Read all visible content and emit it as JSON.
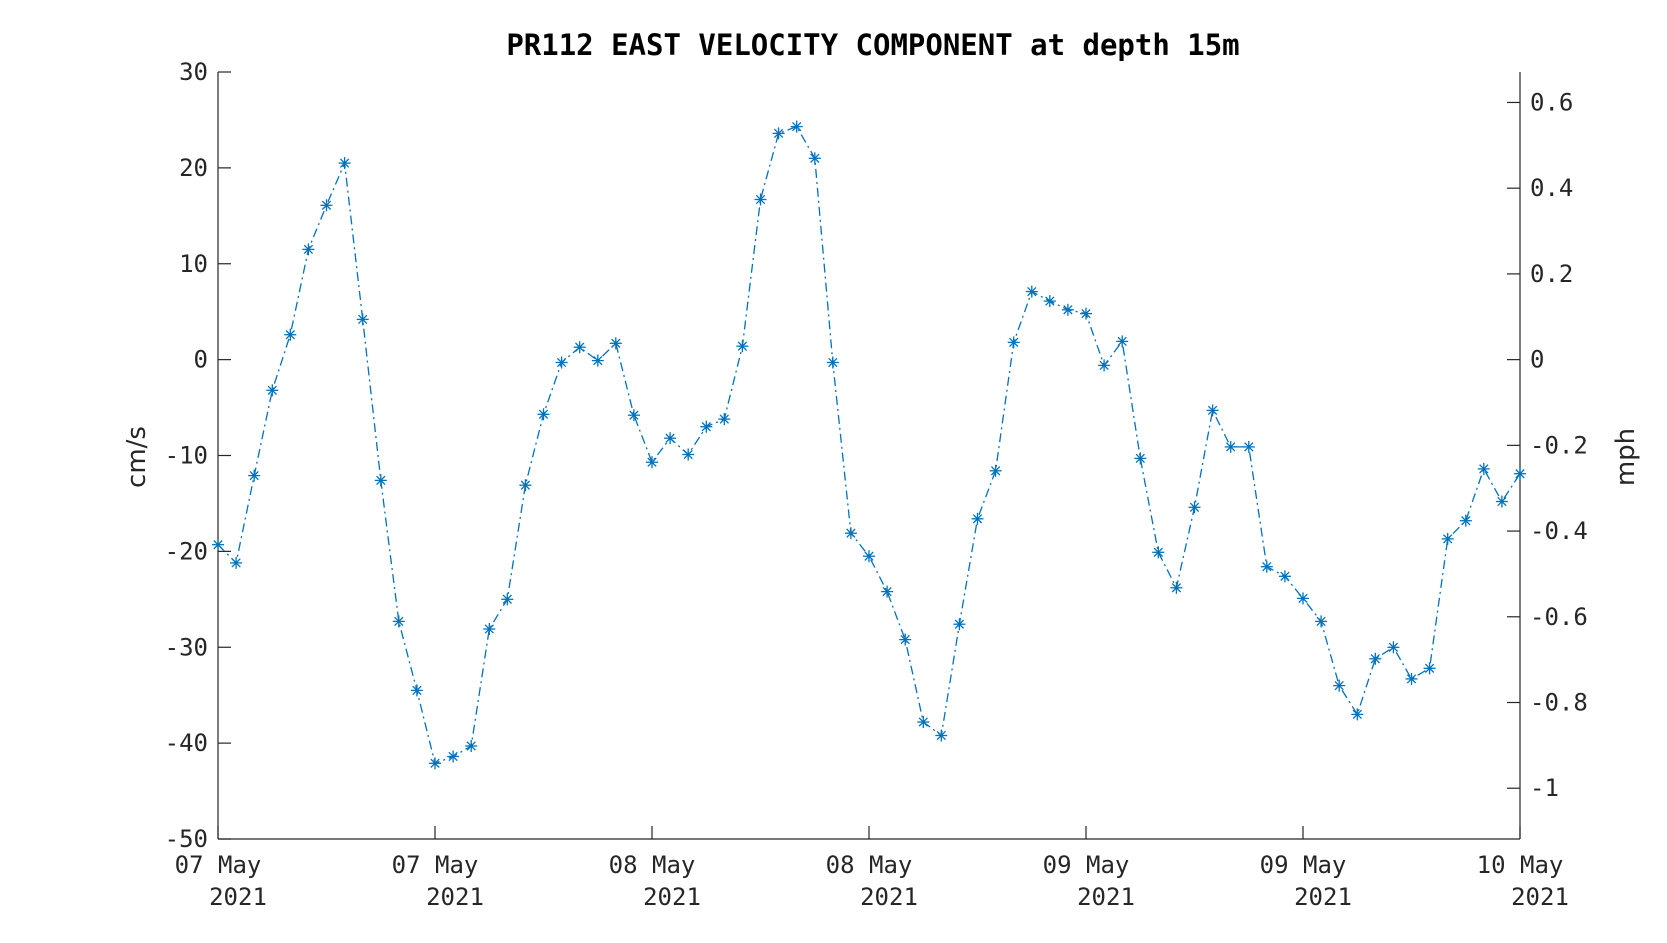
{
  "chart_data": {
    "type": "line",
    "title": "PR112 EAST VELOCITY COMPONENT at depth 15m",
    "ylabel": "cm/s",
    "ylabel_right": "mph",
    "xlabel": "",
    "ylim": [
      -50,
      30
    ],
    "yticks": [
      30,
      20,
      10,
      0,
      -10,
      -20,
      -30,
      -40,
      -50
    ],
    "ytick_labels": [
      "30",
      "20",
      "10",
      "0",
      "-10",
      "-20",
      "-30",
      "-40",
      "-50"
    ],
    "right_yticks": [
      0.6,
      0.4,
      0.2,
      0,
      -0.2,
      -0.4,
      -0.6,
      -0.8,
      -1
    ],
    "right_ytick_labels": [
      "0.6",
      "0.4",
      "0.2",
      "0",
      "-0.2",
      "-0.4",
      "-0.6",
      "-0.8",
      "-1"
    ],
    "xlim_hours": [
      0,
      72
    ],
    "xticks_hours": [
      0,
      12,
      24,
      36,
      48,
      60,
      72
    ],
    "xtick_labels": [
      [
        "07 May",
        "2021"
      ],
      [
        "07 May",
        "2021"
      ],
      [
        "08 May",
        "2021"
      ],
      [
        "08 May",
        "2021"
      ],
      [
        "09 May",
        "2021"
      ],
      [
        "09 May",
        "2021"
      ],
      [
        "10 May",
        "2021"
      ]
    ],
    "grid": false,
    "line_style": "dash-dot",
    "marker": "asterisk",
    "color": "#0072BD",
    "series": [
      {
        "values": [
          -19.3,
          -21.2,
          -12.1,
          -3.2,
          2.6,
          11.5,
          16.1,
          20.5,
          4.2,
          -12.6,
          -27.3,
          -34.5,
          -42.1,
          -41.4,
          -40.3,
          -28.1,
          -25.0,
          -13.1,
          -5.7,
          -0.3,
          1.3,
          -0.1,
          1.7,
          -5.8,
          -10.7,
          -8.2,
          -9.9,
          -7.0,
          -6.2,
          1.4,
          16.7,
          23.6,
          24.3,
          21.0,
          -0.3,
          -18.1,
          -20.5,
          -24.2,
          -29.2,
          -37.8,
          -39.2,
          -27.6,
          -16.6,
          -11.6,
          1.8,
          7.1,
          6.1,
          5.2,
          4.8,
          -0.6,
          1.9,
          -10.3,
          -20.1,
          -23.8,
          -15.4,
          -5.3,
          -9.1,
          -9.1,
          -21.6,
          -22.6,
          -24.9,
          -27.3,
          -34.0,
          -37.0,
          -31.2,
          -30.0,
          -33.3,
          -32.2,
          -18.7,
          -16.8,
          -11.4,
          -14.8,
          -11.9
        ]
      }
    ]
  }
}
